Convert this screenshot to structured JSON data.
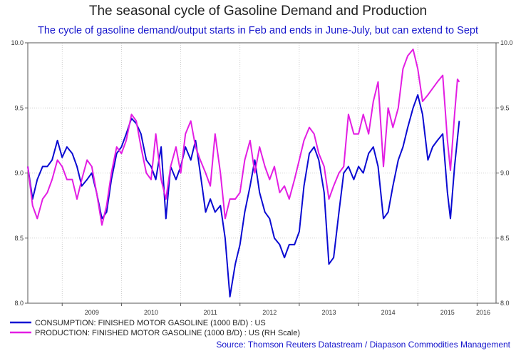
{
  "title": "The seasonal cycle of Gasoline Demand and Production",
  "subtitle": "The cycle of gasoline demand/output starts in Feb and ends in June-July, but can extend to Sept",
  "source": "Source: Thomson Reuters Datastream / Diapason Commodities Management",
  "chart_data": {
    "type": "line",
    "x_ticks": [
      "2009",
      "2010",
      "2011",
      "2012",
      "2013",
      "2014",
      "2015",
      "2016"
    ],
    "y_left": {
      "range": [
        8.0,
        10.0
      ],
      "ticks": [
        "8.0",
        "8.5",
        "9.0",
        "9.5",
        "10.0"
      ]
    },
    "y_right": {
      "range": [
        8.0,
        10.0
      ],
      "ticks": [
        "8.0",
        "8.5",
        "9.0",
        "9.5",
        "10.0"
      ]
    },
    "grid": true,
    "legend_position": "bottom",
    "series": [
      {
        "name": "CONSUMPTION: FINISHED MOTOR GASOLINE (1000 B/D) : US",
        "color": "#0a0ad2",
        "axis": "left",
        "points": [
          [
            2008.42,
            9.05
          ],
          [
            2008.5,
            8.8
          ],
          [
            2008.58,
            8.95
          ],
          [
            2008.67,
            9.05
          ],
          [
            2008.75,
            9.05
          ],
          [
            2008.83,
            9.1
          ],
          [
            2008.92,
            9.25
          ],
          [
            2009.0,
            9.12
          ],
          [
            2009.08,
            9.2
          ],
          [
            2009.17,
            9.15
          ],
          [
            2009.25,
            9.05
          ],
          [
            2009.33,
            8.9
          ],
          [
            2009.42,
            8.95
          ],
          [
            2009.5,
            9.0
          ],
          [
            2009.58,
            8.85
          ],
          [
            2009.67,
            8.65
          ],
          [
            2009.75,
            8.7
          ],
          [
            2009.83,
            8.95
          ],
          [
            2009.92,
            9.15
          ],
          [
            2010.0,
            9.2
          ],
          [
            2010.08,
            9.3
          ],
          [
            2010.17,
            9.42
          ],
          [
            2010.25,
            9.38
          ],
          [
            2010.33,
            9.3
          ],
          [
            2010.42,
            9.1
          ],
          [
            2010.5,
            9.05
          ],
          [
            2010.58,
            8.95
          ],
          [
            2010.67,
            9.2
          ],
          [
            2010.75,
            8.65
          ],
          [
            2010.83,
            9.05
          ],
          [
            2010.92,
            8.95
          ],
          [
            2011.0,
            9.05
          ],
          [
            2011.08,
            9.2
          ],
          [
            2011.17,
            9.1
          ],
          [
            2011.25,
            9.25
          ],
          [
            2011.33,
            9.0
          ],
          [
            2011.42,
            8.7
          ],
          [
            2011.5,
            8.8
          ],
          [
            2011.58,
            8.7
          ],
          [
            2011.67,
            8.75
          ],
          [
            2011.75,
            8.5
          ],
          [
            2011.83,
            8.05
          ],
          [
            2011.92,
            8.3
          ],
          [
            2012.0,
            8.45
          ],
          [
            2012.08,
            8.7
          ],
          [
            2012.17,
            8.9
          ],
          [
            2012.25,
            9.1
          ],
          [
            2012.33,
            8.85
          ],
          [
            2012.42,
            8.7
          ],
          [
            2012.5,
            8.65
          ],
          [
            2012.58,
            8.5
          ],
          [
            2012.67,
            8.45
          ],
          [
            2012.75,
            8.35
          ],
          [
            2012.83,
            8.45
          ],
          [
            2012.92,
            8.45
          ],
          [
            2013.0,
            8.55
          ],
          [
            2013.08,
            8.9
          ],
          [
            2013.17,
            9.15
          ],
          [
            2013.25,
            9.2
          ],
          [
            2013.33,
            9.1
          ],
          [
            2013.42,
            8.85
          ],
          [
            2013.5,
            8.3
          ],
          [
            2013.58,
            8.35
          ],
          [
            2013.67,
            8.7
          ],
          [
            2013.75,
            9.0
          ],
          [
            2013.83,
            9.05
          ],
          [
            2013.92,
            8.95
          ],
          [
            2014.0,
            9.05
          ],
          [
            2014.08,
            9.0
          ],
          [
            2014.17,
            9.15
          ],
          [
            2014.25,
            9.2
          ],
          [
            2014.33,
            9.05
          ],
          [
            2014.42,
            8.65
          ],
          [
            2014.5,
            8.7
          ],
          [
            2014.58,
            8.9
          ],
          [
            2014.67,
            9.1
          ],
          [
            2014.75,
            9.2
          ],
          [
            2014.83,
            9.35
          ],
          [
            2014.92,
            9.5
          ],
          [
            2015.0,
            9.6
          ],
          [
            2015.08,
            9.45
          ],
          [
            2015.17,
            9.1
          ],
          [
            2015.25,
            9.2
          ],
          [
            2015.33,
            9.25
          ],
          [
            2015.42,
            9.3
          ],
          [
            2015.5,
            8.85
          ],
          [
            2015.55,
            8.65
          ],
          [
            2015.62,
            9.05
          ],
          [
            2015.7,
            9.4
          ]
        ]
      },
      {
        "name": "PRODUCTION: FINISHED MOTOR GASOLINE (1000 B/D) : US (RH Scale)",
        "color": "#e31ee3",
        "axis": "right",
        "points": [
          [
            2008.42,
            9.05
          ],
          [
            2008.5,
            8.75
          ],
          [
            2008.58,
            8.65
          ],
          [
            2008.67,
            8.8
          ],
          [
            2008.75,
            8.85
          ],
          [
            2008.83,
            8.95
          ],
          [
            2008.92,
            9.1
          ],
          [
            2009.0,
            9.05
          ],
          [
            2009.08,
            8.95
          ],
          [
            2009.17,
            8.95
          ],
          [
            2009.25,
            8.8
          ],
          [
            2009.33,
            8.95
          ],
          [
            2009.42,
            9.1
          ],
          [
            2009.5,
            9.05
          ],
          [
            2009.58,
            8.85
          ],
          [
            2009.67,
            8.6
          ],
          [
            2009.75,
            8.75
          ],
          [
            2009.83,
            9.0
          ],
          [
            2009.92,
            9.2
          ],
          [
            2010.0,
            9.15
          ],
          [
            2010.08,
            9.25
          ],
          [
            2010.17,
            9.45
          ],
          [
            2010.25,
            9.4
          ],
          [
            2010.33,
            9.2
          ],
          [
            2010.42,
            9.0
          ],
          [
            2010.5,
            8.95
          ],
          [
            2010.58,
            9.3
          ],
          [
            2010.67,
            8.95
          ],
          [
            2010.75,
            8.8
          ],
          [
            2010.83,
            9.05
          ],
          [
            2010.92,
            9.2
          ],
          [
            2011.0,
            9.0
          ],
          [
            2011.08,
            9.3
          ],
          [
            2011.17,
            9.4
          ],
          [
            2011.25,
            9.2
          ],
          [
            2011.33,
            9.1
          ],
          [
            2011.42,
            9.0
          ],
          [
            2011.5,
            8.9
          ],
          [
            2011.58,
            9.3
          ],
          [
            2011.67,
            9.0
          ],
          [
            2011.75,
            8.65
          ],
          [
            2011.83,
            8.8
          ],
          [
            2011.92,
            8.8
          ],
          [
            2012.0,
            8.85
          ],
          [
            2012.08,
            9.1
          ],
          [
            2012.17,
            9.25
          ],
          [
            2012.25,
            9.0
          ],
          [
            2012.33,
            9.2
          ],
          [
            2012.42,
            9.05
          ],
          [
            2012.5,
            8.95
          ],
          [
            2012.58,
            9.05
          ],
          [
            2012.67,
            8.85
          ],
          [
            2012.75,
            8.9
          ],
          [
            2012.83,
            8.8
          ],
          [
            2012.92,
            8.95
          ],
          [
            2013.0,
            9.1
          ],
          [
            2013.08,
            9.25
          ],
          [
            2013.17,
            9.35
          ],
          [
            2013.25,
            9.3
          ],
          [
            2013.33,
            9.15
          ],
          [
            2013.42,
            9.05
          ],
          [
            2013.5,
            8.8
          ],
          [
            2013.58,
            8.9
          ],
          [
            2013.67,
            9.0
          ],
          [
            2013.75,
            9.05
          ],
          [
            2013.83,
            9.45
          ],
          [
            2013.92,
            9.3
          ],
          [
            2014.0,
            9.3
          ],
          [
            2014.08,
            9.45
          ],
          [
            2014.17,
            9.3
          ],
          [
            2014.25,
            9.55
          ],
          [
            2014.33,
            9.7
          ],
          [
            2014.42,
            9.05
          ],
          [
            2014.5,
            9.5
          ],
          [
            2014.58,
            9.35
          ],
          [
            2014.67,
            9.5
          ],
          [
            2014.75,
            9.8
          ],
          [
            2014.83,
            9.9
          ],
          [
            2014.92,
            9.95
          ],
          [
            2015.0,
            9.8
          ],
          [
            2015.08,
            9.55
          ],
          [
            2015.17,
            9.6
          ],
          [
            2015.25,
            9.65
          ],
          [
            2015.33,
            9.7
          ],
          [
            2015.42,
            9.75
          ],
          [
            2015.5,
            9.25
          ],
          [
            2015.55,
            9.02
          ],
          [
            2015.62,
            9.45
          ],
          [
            2015.67,
            9.72
          ],
          [
            2015.7,
            9.7
          ]
        ]
      }
    ]
  }
}
